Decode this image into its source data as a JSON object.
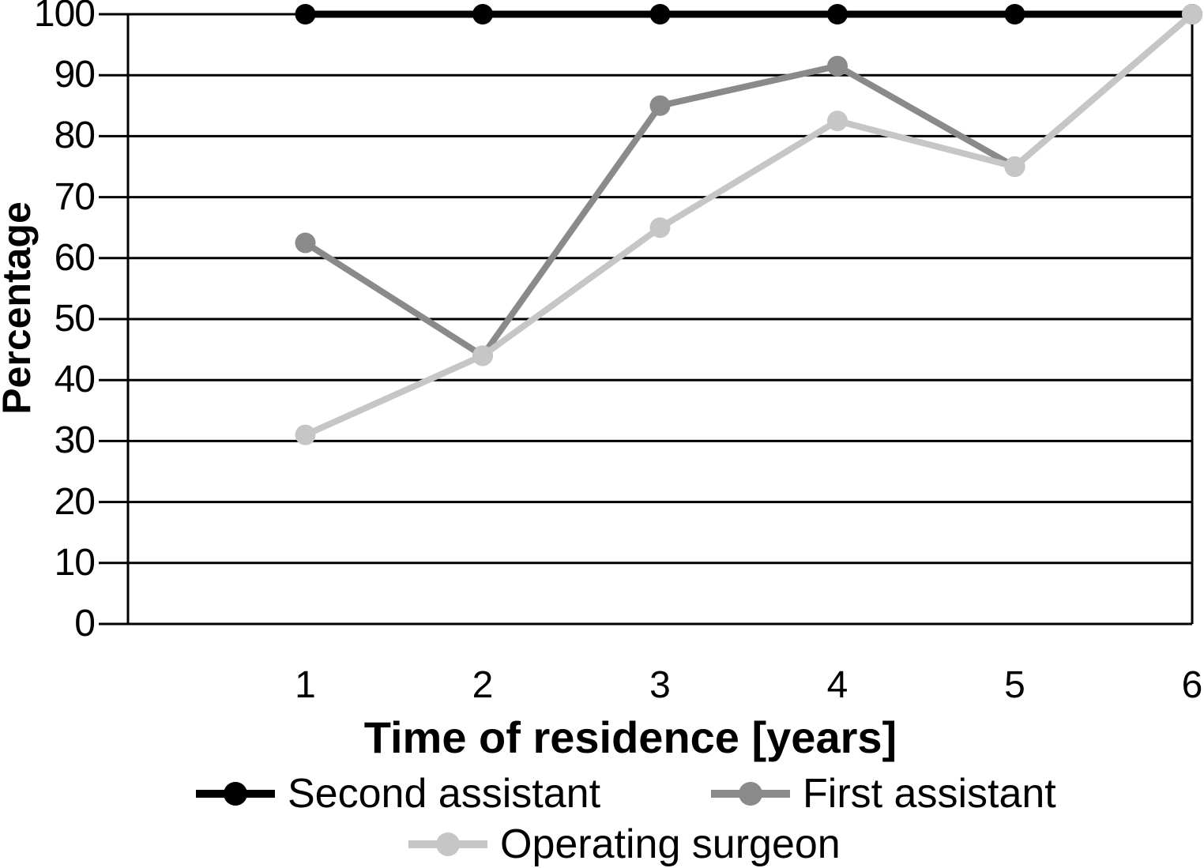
{
  "chart_data": {
    "type": "line",
    "x": [
      1,
      2,
      3,
      4,
      5,
      6
    ],
    "xticks": [
      "1",
      "2",
      "3",
      "4",
      "5",
      "6"
    ],
    "yticks": [
      "0",
      "10",
      "20",
      "30",
      "40",
      "50",
      "60",
      "70",
      "80",
      "90",
      "100"
    ],
    "xlabel": "Time of residence [years]",
    "ylabel": "Percentage",
    "ylim": [
      0,
      100
    ],
    "ytick_step": 10,
    "grid": "horizontal",
    "legend_position": "bottom",
    "axis_color": "#000000",
    "series": [
      {
        "name": "Second assistant",
        "color": "#000000",
        "values": [
          100,
          100,
          100,
          100,
          100,
          100
        ]
      },
      {
        "name": "First assistant",
        "color": "#8a8a8a",
        "values": [
          62.5,
          44,
          85,
          91.5,
          75,
          100
        ]
      },
      {
        "name": "Operating surgeon",
        "color": "#c6c6c6",
        "values": [
          31,
          44,
          65,
          82.5,
          75,
          100
        ]
      }
    ]
  }
}
